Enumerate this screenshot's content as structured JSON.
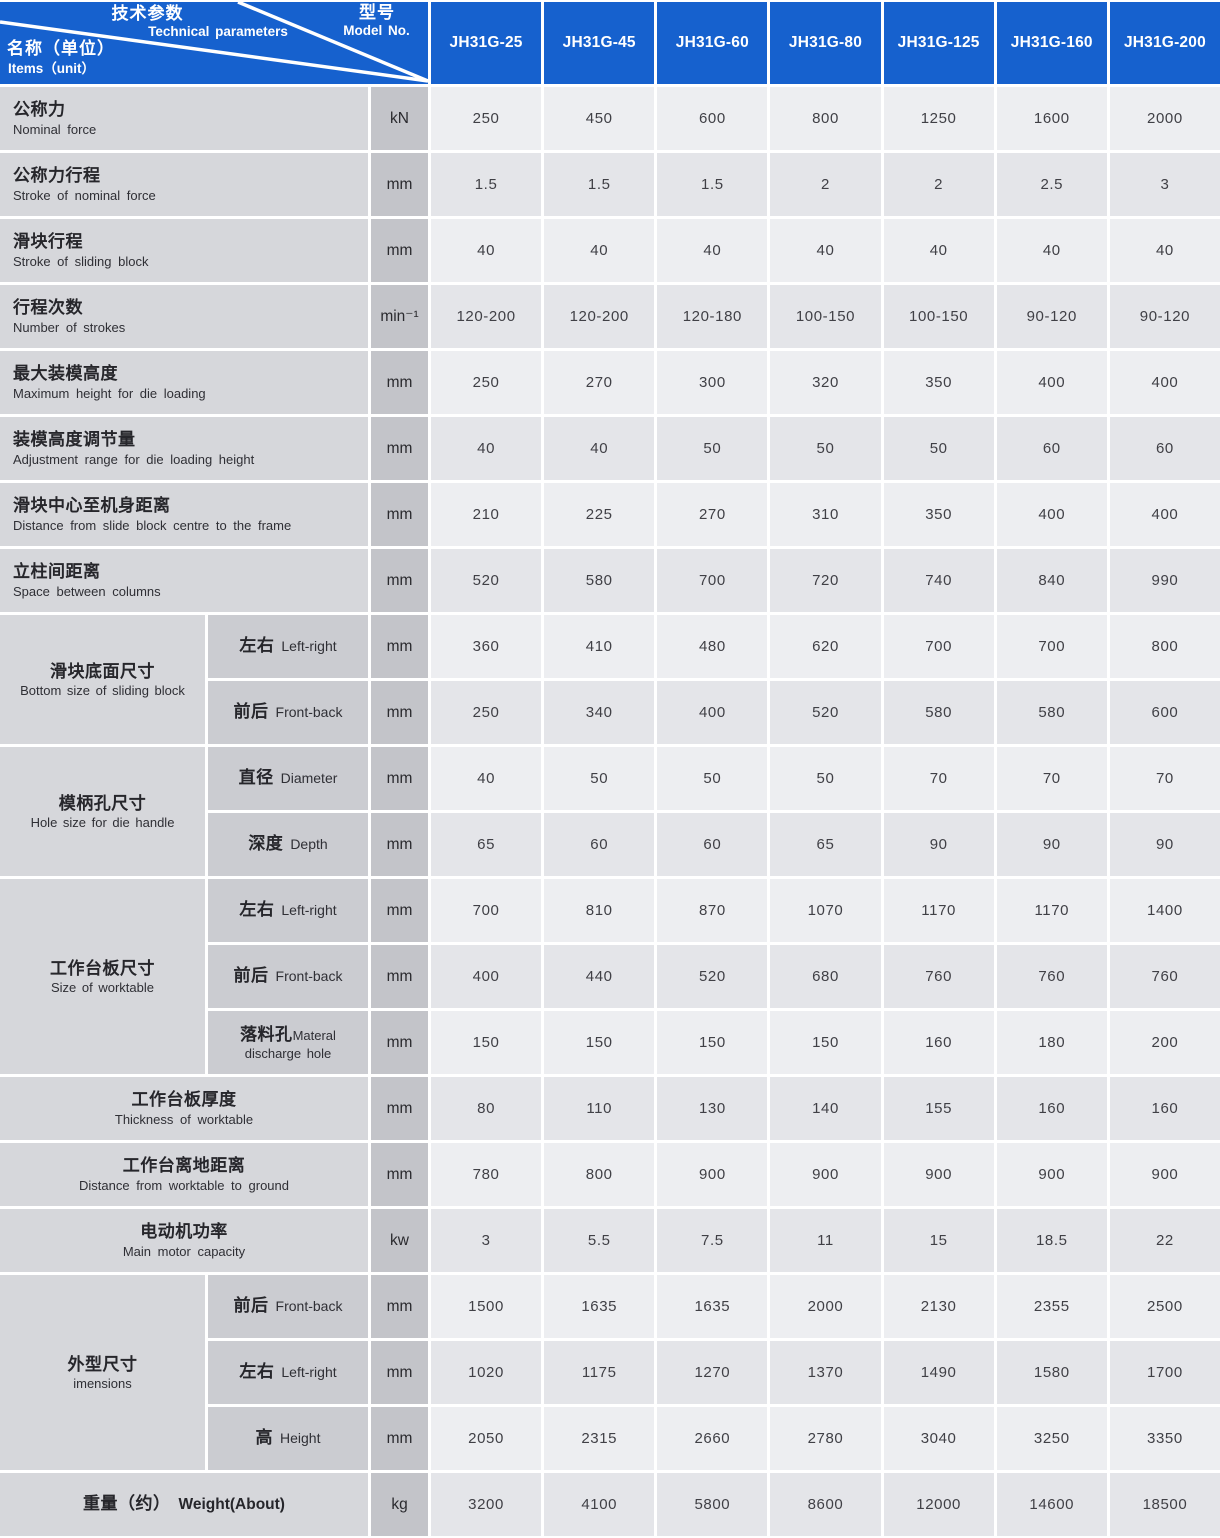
{
  "corner": {
    "top_zh": "技术参数",
    "top_en": "Technical parameters",
    "right_zh": "型号",
    "right_en": "Model No.",
    "left_zh": "名称（单位）",
    "left_en": "Items（unit）"
  },
  "models": [
    "JH31G-25",
    "JH31G-45",
    "JH31G-60",
    "JH31G-80",
    "JH31G-125",
    "JH31G-160",
    "JH31G-200"
  ],
  "colors": {
    "header_blue": "#1661ce",
    "label_bg": "#d6d7db",
    "sublabel_bg": "#cbccd1",
    "unit_bg": "#c3c4c9",
    "value_bg_light": "#edeef1",
    "value_bg_dark": "#e4e5e9"
  },
  "rows": [
    {
      "type": "simple",
      "zh": "公称力",
      "en": "Nominal force",
      "unit": "kN",
      "values": [
        "250",
        "450",
        "600",
        "800",
        "1250",
        "1600",
        "2000"
      ]
    },
    {
      "type": "simple",
      "zh": "公称力行程",
      "en": "Stroke of nominal force",
      "unit": "mm",
      "values": [
        "1.5",
        "1.5",
        "1.5",
        "2",
        "2",
        "2.5",
        "3"
      ]
    },
    {
      "type": "simple",
      "zh": "滑块行程",
      "en": "Stroke of sliding block",
      "unit": "mm",
      "values": [
        "40",
        "40",
        "40",
        "40",
        "40",
        "40",
        "40"
      ]
    },
    {
      "type": "simple",
      "zh": "行程次数",
      "en": "Number of strokes",
      "unit": "min⁻¹",
      "values": [
        "120-200",
        "120-200",
        "120-180",
        "100-150",
        "100-150",
        "90-120",
        "90-120"
      ]
    },
    {
      "type": "simple",
      "zh": "最大装模高度",
      "en": "Maximum height for die loading",
      "unit": "mm",
      "values": [
        "250",
        "270",
        "300",
        "320",
        "350",
        "400",
        "400"
      ]
    },
    {
      "type": "simple",
      "zh": "装模高度调节量",
      "en": "Adjustment range for die loading height",
      "unit": "mm",
      "values": [
        "40",
        "40",
        "50",
        "50",
        "50",
        "60",
        "60"
      ]
    },
    {
      "type": "simple",
      "zh": "滑块中心至机身距离",
      "en": "Distance from slide block centre to the frame",
      "unit": "mm",
      "values": [
        "210",
        "225",
        "270",
        "310",
        "350",
        "400",
        "400"
      ]
    },
    {
      "type": "simple",
      "zh": "立柱间距离",
      "en": "Space between columns",
      "unit": "mm",
      "values": [
        "520",
        "580",
        "700",
        "720",
        "740",
        "840",
        "990"
      ]
    },
    {
      "type": "group",
      "group_zh": "滑块底面尺寸",
      "group_en": "Bottom size of sliding block",
      "span": 2,
      "sub_zh": "左右",
      "sub_en": "Left-right",
      "unit": "mm",
      "values": [
        "360",
        "410",
        "480",
        "620",
        "700",
        "700",
        "800"
      ]
    },
    {
      "type": "sub",
      "sub_zh": "前后",
      "sub_en": "Front-back",
      "unit": "mm",
      "values": [
        "250",
        "340",
        "400",
        "520",
        "580",
        "580",
        "600"
      ]
    },
    {
      "type": "group",
      "group_zh": "模柄孔尺寸",
      "group_en": "Hole size for die handle",
      "span": 2,
      "sub_zh": "直径",
      "sub_en": "Diameter",
      "unit": "mm",
      "values": [
        "40",
        "50",
        "50",
        "50",
        "70",
        "70",
        "70"
      ]
    },
    {
      "type": "sub",
      "sub_zh": "深度",
      "sub_en": "Depth",
      "unit": "mm",
      "values": [
        "65",
        "60",
        "60",
        "65",
        "90",
        "90",
        "90"
      ]
    },
    {
      "type": "group",
      "group_zh": "工作台板尺寸",
      "group_en": "Size of worktable",
      "span": 3,
      "sub_zh": "左右",
      "sub_en": "Left-right",
      "unit": "mm",
      "values": [
        "700",
        "810",
        "870",
        "1070",
        "1170",
        "1170",
        "1400"
      ]
    },
    {
      "type": "sub",
      "sub_zh": "前后",
      "sub_en": "Front-back",
      "unit": "mm",
      "values": [
        "400",
        "440",
        "520",
        "680",
        "760",
        "760",
        "760"
      ]
    },
    {
      "type": "sub",
      "sub_zh": "落料孔",
      "sub_en": "Materal",
      "sub_en2": "discharge hole",
      "unit": "mm",
      "values": [
        "150",
        "150",
        "150",
        "150",
        "160",
        "180",
        "200"
      ]
    },
    {
      "type": "simple_center",
      "zh": "工作台板厚度",
      "en": "Thickness of worktable",
      "unit": "mm",
      "values": [
        "80",
        "110",
        "130",
        "140",
        "155",
        "160",
        "160"
      ]
    },
    {
      "type": "simple_center",
      "zh": "工作台离地距离",
      "en": "Distance from worktable to ground",
      "unit": "mm",
      "values": [
        "780",
        "800",
        "900",
        "900",
        "900",
        "900",
        "900"
      ]
    },
    {
      "type": "simple_center",
      "zh": "电动机功率",
      "en": "Main motor capacity",
      "unit": "kw",
      "values": [
        "3",
        "5.5",
        "7.5",
        "11",
        "15",
        "18.5",
        "22"
      ]
    },
    {
      "type": "group",
      "group_zh": "外型尺寸",
      "group_en": "imensions",
      "span": 3,
      "sub_zh": "前后",
      "sub_en": "Front-back",
      "unit": "mm",
      "values": [
        "1500",
        "1635",
        "1635",
        "2000",
        "2130",
        "2355",
        "2500"
      ]
    },
    {
      "type": "sub",
      "sub_zh": "左右",
      "sub_en": "Left-right",
      "unit": "mm",
      "values": [
        "1020",
        "1175",
        "1270",
        "1370",
        "1490",
        "1580",
        "1700"
      ]
    },
    {
      "type": "sub",
      "sub_zh": "高",
      "sub_en": "Height",
      "unit": "mm",
      "values": [
        "2050",
        "2315",
        "2660",
        "2780",
        "3040",
        "3250",
        "3350"
      ]
    },
    {
      "type": "weight",
      "zh": "重量（约）",
      "en": "Weight(About)",
      "unit": "kg",
      "values": [
        "3200",
        "4100",
        "5800",
        "8600",
        "12000",
        "14600",
        "18500"
      ]
    }
  ]
}
